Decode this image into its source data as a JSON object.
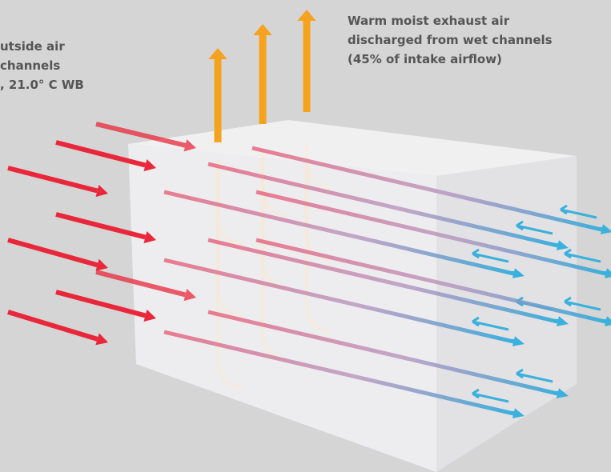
{
  "intake_label": {
    "lines": [
      "utside air",
      "channels",
      ", 21.0°  C WB"
    ]
  },
  "exhaust_label": {
    "lines": [
      "Warm moist exhaust air",
      "discharged from wet channels",
      "(45% of intake airflow)"
    ]
  }
}
